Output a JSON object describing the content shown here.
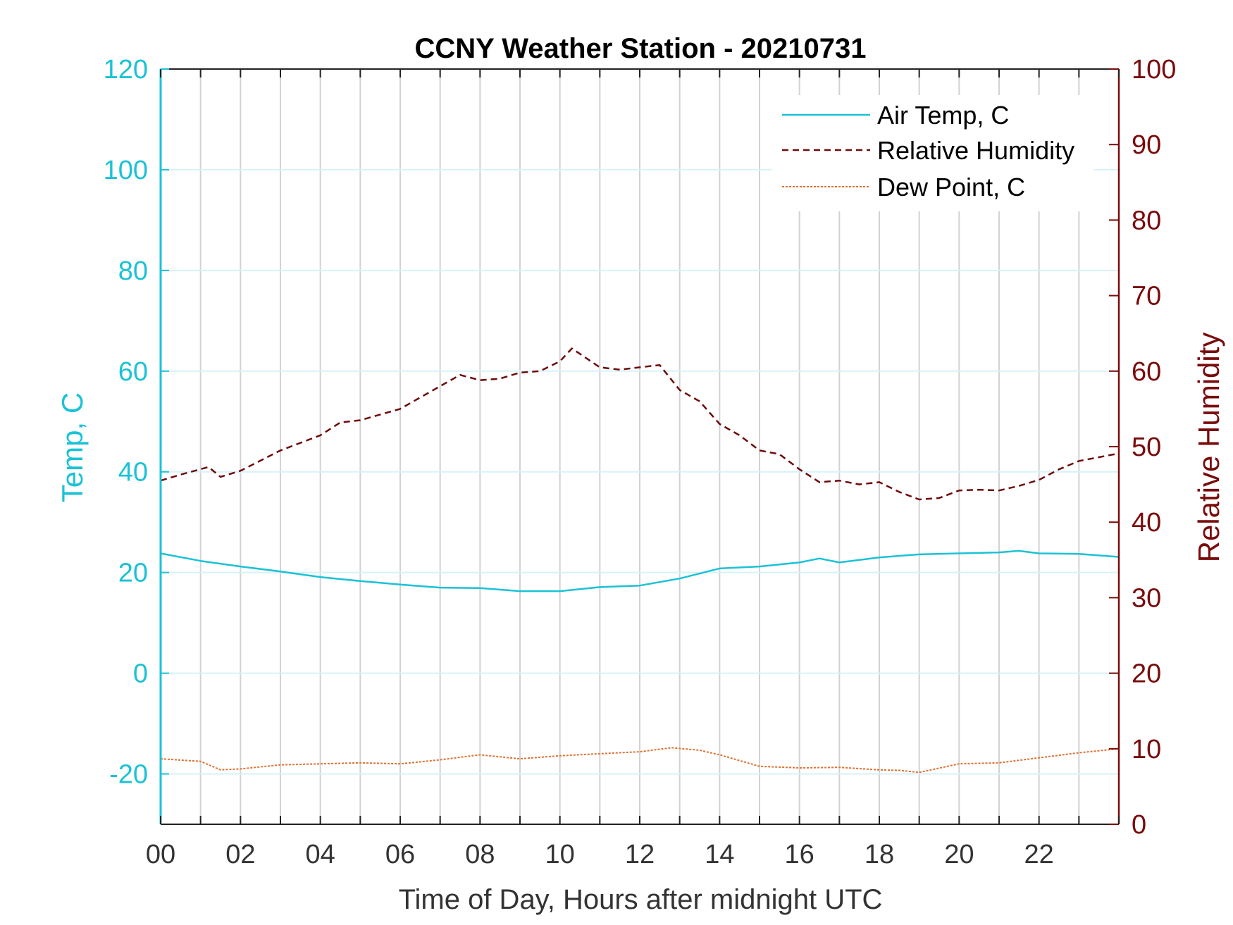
{
  "chart_data": {
    "type": "line",
    "title": "CCNY Weather Station - 20210731",
    "xlabel": "Time of Day, Hours after midnight UTC",
    "ylabel_left": "Temp, C",
    "ylabel_right": "Relative Humidity",
    "xlim": [
      0,
      24
    ],
    "ylim_left": [
      -30,
      120
    ],
    "ylim_right": [
      0,
      100
    ],
    "x_ticks": [
      0,
      2,
      4,
      6,
      8,
      10,
      12,
      14,
      16,
      18,
      20,
      22
    ],
    "x_tick_labels": [
      "00",
      "02",
      "04",
      "06",
      "08",
      "10",
      "12",
      "14",
      "16",
      "18",
      "20",
      "22"
    ],
    "y_left_ticks": [
      -20,
      0,
      20,
      40,
      60,
      80,
      100,
      120
    ],
    "y_left_tick_labels": [
      "-20",
      "0",
      "20",
      "40",
      "60",
      "80",
      "100",
      "120"
    ],
    "y_right_ticks": [
      0,
      10,
      20,
      30,
      40,
      50,
      60,
      70,
      80,
      90,
      100
    ],
    "y_right_tick_labels": [
      "0",
      "10",
      "20",
      "30",
      "40",
      "50",
      "60",
      "70",
      "80",
      "90",
      "100"
    ],
    "grid": true,
    "legend_position": "top-right",
    "colors": {
      "temp_axis": "#1bc2d6",
      "rh_axis": "#7a0b0b",
      "air_temp": "#1bc2d6",
      "relative_humidity": "#6e0a0a",
      "dew_point": "#e07030",
      "grid_vertical": "#d2d2d2",
      "grid_horizontal": "#d6f2f7"
    },
    "series": [
      {
        "name": "Air Temp, C",
        "axis": "left",
        "style": "solid",
        "x": [
          0,
          1,
          2,
          3,
          4,
          5,
          6,
          7,
          8,
          9,
          10,
          11,
          12,
          13,
          14,
          15,
          16,
          16.5,
          17,
          18,
          19,
          20,
          21,
          21.5,
          22,
          23,
          24
        ],
        "y": [
          23.8,
          22.3,
          21.2,
          20.2,
          19.1,
          18.3,
          17.6,
          17.0,
          16.9,
          16.3,
          16.3,
          17.1,
          17.4,
          18.8,
          20.8,
          21.2,
          22.0,
          22.8,
          22.0,
          23.0,
          23.6,
          23.8,
          24.0,
          24.3,
          23.8,
          23.7,
          23.1
        ]
      },
      {
        "name": "Relative Humidity",
        "axis": "right",
        "style": "dashed",
        "x": [
          0,
          0.5,
          1.2,
          1.5,
          2,
          3,
          4,
          4.5,
          5,
          6,
          6.5,
          7,
          7.5,
          8,
          8.5,
          9,
          9.5,
          10,
          10.3,
          11,
          11.5,
          12,
          12.5,
          13,
          13.5,
          14,
          14.5,
          15,
          15.5,
          16,
          16.5,
          17,
          17.5,
          18,
          18.5,
          19,
          19.5,
          20,
          20.5,
          21,
          21.5,
          22,
          22.5,
          23,
          23.5,
          24
        ],
        "y": [
          45.5,
          46.3,
          47.3,
          46,
          46.8,
          49.5,
          51.5,
          53.2,
          53.5,
          55,
          56.5,
          58,
          59.5,
          58.8,
          59,
          59.8,
          60,
          61.3,
          63,
          60.5,
          60.2,
          60.5,
          60.8,
          57.5,
          56,
          53,
          51.5,
          49.5,
          49,
          47,
          45.3,
          45.5,
          45,
          45.3,
          44,
          43,
          43.2,
          44.2,
          44.3,
          44.2,
          44.8,
          45.6,
          47,
          48.1,
          48.6,
          49.1
        ]
      },
      {
        "name": "Dew Point, C",
        "axis": "left",
        "style": "dotted",
        "x": [
          0,
          1,
          1.5,
          2,
          3,
          4,
          5,
          6,
          7,
          8,
          9,
          10,
          11,
          12,
          12.8,
          13.5,
          14,
          15,
          16,
          17,
          18,
          18.5,
          19,
          20,
          21,
          22,
          23,
          24
        ],
        "y": [
          -17,
          -17.5,
          -19.2,
          -19,
          -18.2,
          -18,
          -17.8,
          -18,
          -17.2,
          -16.2,
          -17,
          -16.4,
          -16,
          -15.6,
          -14.8,
          -15.3,
          -16.2,
          -18.5,
          -18.8,
          -18.7,
          -19.2,
          -19.3,
          -19.7,
          -18,
          -17.8,
          -16.8,
          -15.8,
          -15
        ]
      }
    ]
  }
}
